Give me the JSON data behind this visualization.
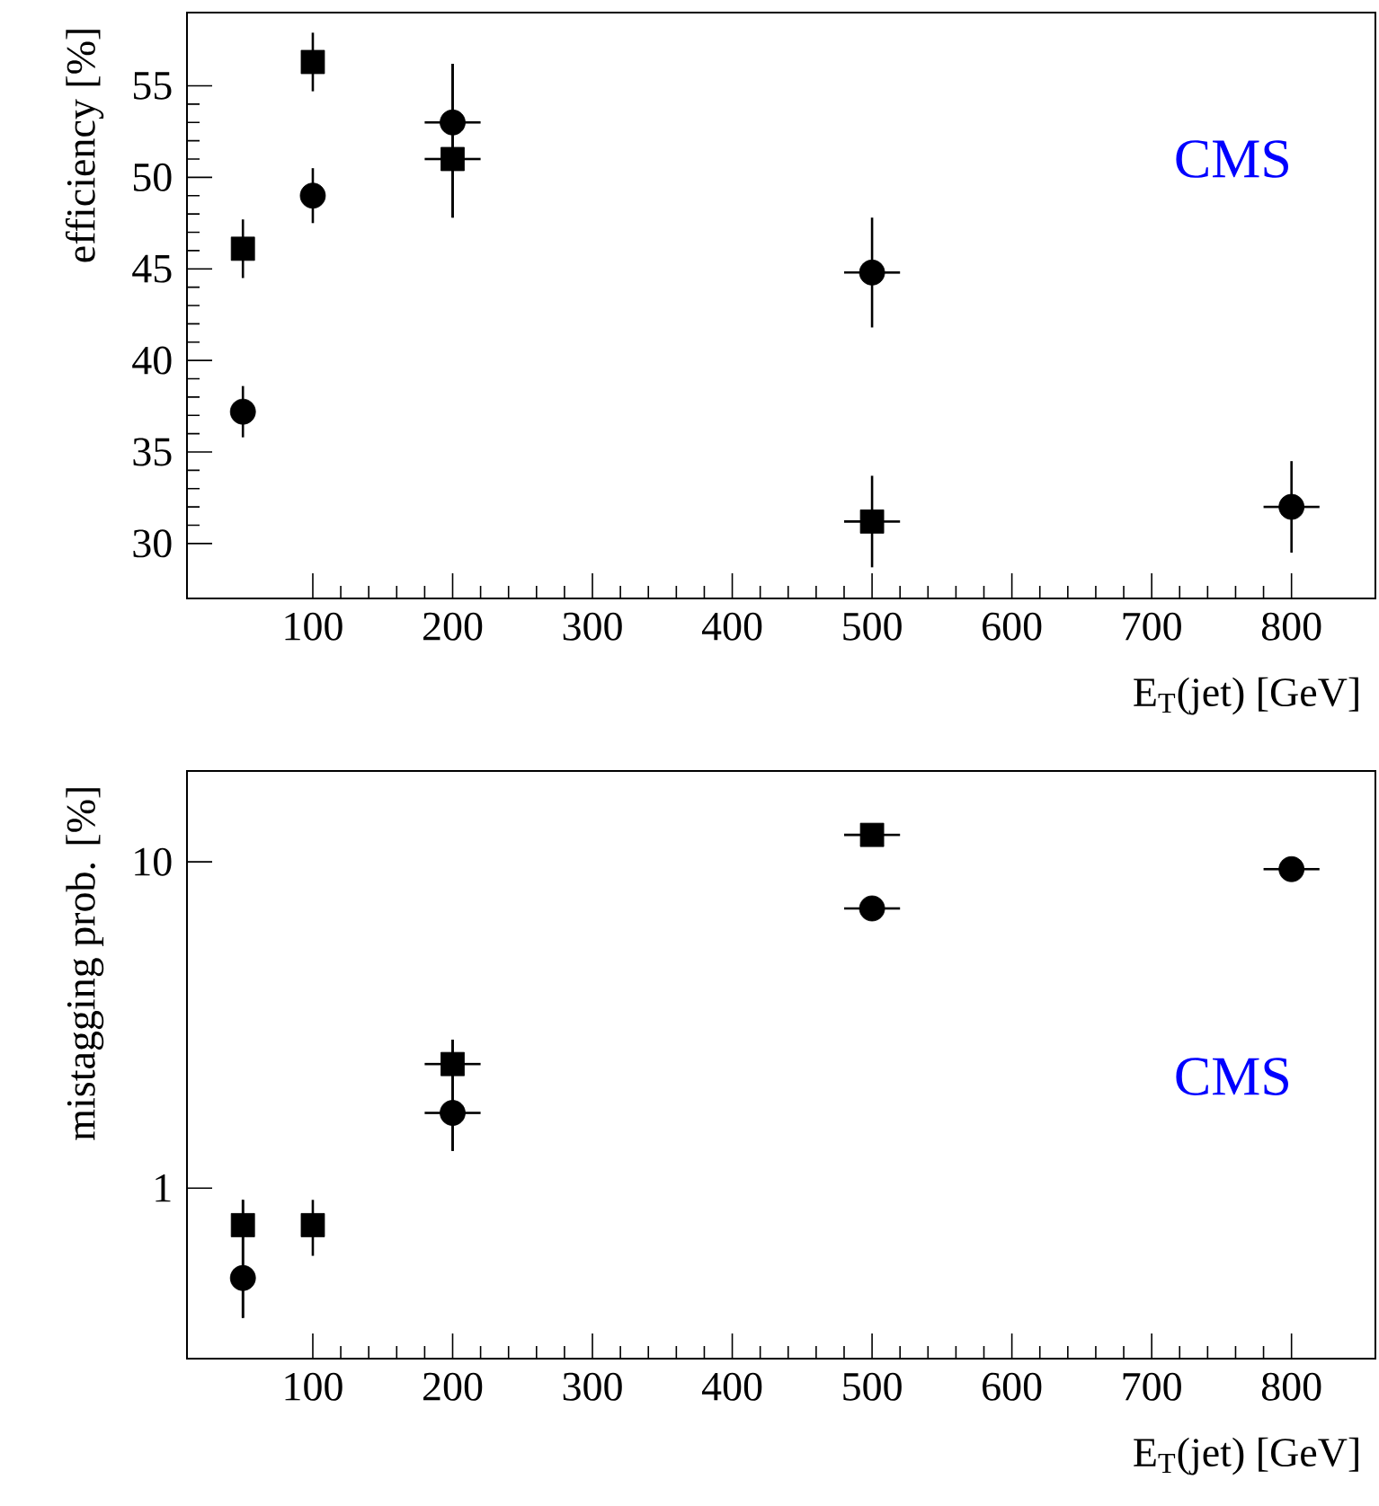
{
  "chart_data": [
    {
      "type": "scatter",
      "xlabel": "E$_{T}$(jet) [GeV]",
      "ylabel": "efficiency [%]",
      "xlim": [
        10,
        860
      ],
      "xticks": [
        100,
        200,
        300,
        400,
        500,
        600,
        700,
        800
      ],
      "ylim": [
        27,
        59
      ],
      "yticks": [
        30,
        35,
        40,
        45,
        50,
        55
      ],
      "annotations": [
        "CMS"
      ],
      "series": [
        {
          "marker": "circle",
          "color": "#000000",
          "x": [
            50,
            100,
            200,
            500,
            800
          ],
          "values": [
            37.2,
            49,
            53,
            44.8,
            32
          ],
          "errors": [
            1.4,
            1.5,
            [
              47.8,
              56.2
            ],
            3,
            2.5
          ],
          "xerrors": [
            null,
            null,
            20,
            20,
            20
          ]
        },
        {
          "marker": "square",
          "color": "#000000",
          "x": [
            50,
            100,
            200,
            500
          ],
          "values": [
            46.1,
            56.3,
            51,
            31.2
          ],
          "errors": [
            1.6,
            1.6,
            [
              47.8,
              56.2
            ],
            2.5
          ],
          "xerrors": [
            null,
            null,
            20,
            20
          ]
        }
      ]
    },
    {
      "type": "scatter",
      "xlabel": "E$_{T}$(jet) [GeV]",
      "ylabel": "mistagging prob. [%]",
      "log": true,
      "xlim": [
        10,
        860
      ],
      "xticks": [
        100,
        200,
        300,
        400,
        500,
        600,
        700,
        800
      ],
      "ylim": [
        0.3,
        19
      ],
      "yticks": [
        1,
        10
      ],
      "annotations": [
        "CMS"
      ],
      "series": [
        {
          "marker": "circle",
          "color": "#000000",
          "x": [
            50,
            200,
            500,
            800
          ],
          "values": [
            0.53,
            1.7,
            7.2,
            9.5
          ],
          "errors": [
            [
              0.4,
              0.92
            ],
            [
              1.3,
              2.85
            ],
            null,
            null
          ],
          "xerrors": [
            null,
            20,
            20,
            20
          ]
        },
        {
          "marker": "square",
          "color": "#000000",
          "x": [
            50,
            100,
            200,
            500
          ],
          "values": [
            0.77,
            0.77,
            2.4,
            12.1
          ],
          "errors": [
            [
              0.4,
              0.92
            ],
            [
              0.62,
              0.92
            ],
            [
              1.3,
              2.85
            ],
            null
          ],
          "xerrors": [
            null,
            null,
            20,
            20
          ]
        }
      ]
    }
  ]
}
